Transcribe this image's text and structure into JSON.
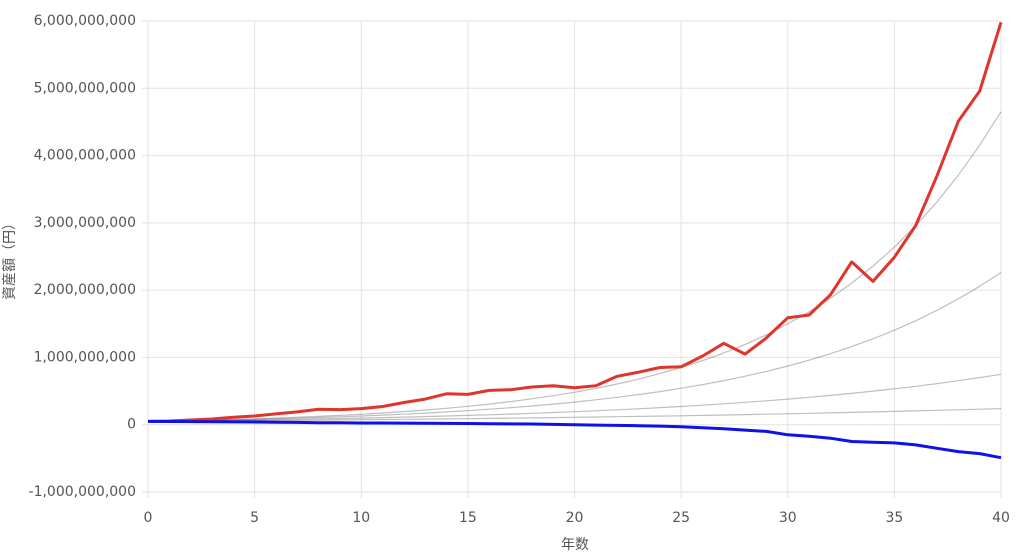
{
  "chart_data": {
    "type": "line",
    "x_label": "年数",
    "y_label": "資産額（円）",
    "x": [
      0,
      1,
      2,
      3,
      4,
      5,
      6,
      7,
      8,
      9,
      10,
      11,
      12,
      13,
      14,
      15,
      16,
      17,
      18,
      19,
      20,
      21,
      22,
      23,
      24,
      25,
      26,
      27,
      28,
      29,
      30,
      31,
      32,
      33,
      34,
      35,
      36,
      37,
      38,
      39,
      40
    ],
    "xlim": [
      0,
      40
    ],
    "xticks": [
      0,
      5,
      10,
      15,
      20,
      25,
      30,
      35,
      40
    ],
    "ylim": [
      -1000000000,
      6000000000
    ],
    "yticks": [
      {
        "value": -1000000000,
        "label": "-1,000,000,000"
      },
      0,
      {
        "value": 1000000000,
        "label": "1,000,000,000"
      },
      {
        "value": 2000000000,
        "label": "2,000,000,000"
      },
      {
        "value": 3000000000,
        "label": "3,000,000,000"
      },
      {
        "value": 4000000000,
        "label": "4,000,000,000"
      },
      {
        "value": 5000000000,
        "label": "5,000,000,000"
      },
      {
        "value": 6000000000,
        "label": "6,000,000,000"
      }
    ],
    "grid": true,
    "series": [
      {
        "color": "rgba(0,0,0,0.25)",
        "values": [
          50000000,
          55000000,
          61000000,
          67000000,
          73000000,
          81000000,
          89000000,
          97000000,
          107000000,
          118000000,
          130000000,
          143000000,
          157000000,
          173000000,
          190000000,
          209000000,
          230000000,
          253000000,
          278000000,
          306000000,
          336000000,
          370000000,
          407000000,
          448000000,
          492000000,
          542000000,
          596000000,
          655000000,
          721000000,
          793000000,
          872000000,
          959000000,
          1055000000,
          1161000000,
          1277000000,
          1405000000,
          1545000000,
          1700000000,
          1870000000,
          2057000000,
          2262000000
        ]
      },
      {
        "color": "rgba(0,0,0,0.25)",
        "values": [
          50000000,
          54000000,
          57000000,
          61000000,
          66000000,
          70000000,
          75000000,
          80000000,
          86000000,
          92000000,
          98000000,
          105000000,
          113000000,
          121000000,
          129000000,
          138000000,
          148000000,
          158000000,
          169000000,
          181000000,
          193000000,
          207000000,
          222000000,
          237000000,
          254000000,
          271000000,
          290000000,
          311000000,
          333000000,
          356000000,
          381000000,
          407000000,
          436000000,
          466000000,
          499000000,
          534000000,
          571000000,
          611000000,
          654000000,
          700000000,
          749000000
        ]
      },
      {
        "color": "rgba(0,0,0,0.25)",
        "values": [
          50000000,
          52000000,
          54000000,
          56000000,
          58000000,
          61000000,
          63000000,
          66000000,
          68000000,
          71000000,
          74000000,
          77000000,
          80000000,
          83000000,
          87000000,
          90000000,
          94000000,
          97000000,
          101000000,
          105000000,
          110000000,
          114000000,
          119000000,
          123000000,
          128000000,
          133000000,
          139000000,
          144000000,
          150000000,
          156000000,
          162000000,
          169000000,
          176000000,
          183000000,
          190000000,
          198000000,
          205000000,
          214000000,
          222000000,
          231000000,
          240000000
        ]
      },
      {
        "color": "rgba(0,0,0,0.25)",
        "values": [
          50000000,
          56000000,
          63000000,
          70000000,
          79000000,
          88000000,
          99000000,
          111000000,
          124000000,
          139000000,
          155000000,
          174000000,
          195000000,
          218000000,
          244000000,
          274000000,
          306000000,
          343000000,
          385000000,
          431000000,
          482000000,
          540000000,
          605000000,
          678000000,
          759000000,
          850000000,
          952000000,
          1066000000,
          1194000000,
          1337000000,
          1498000000,
          1678000000,
          1879000000,
          2104000000,
          2357000000,
          2640000000,
          2956000000,
          3311000000,
          3709000000,
          4154000000,
          4652000000
        ]
      },
      {
        "color": "#e0352b",
        "values": [
          50000000,
          55000000,
          70000000,
          85000000,
          110000000,
          130000000,
          160000000,
          190000000,
          230000000,
          225000000,
          240000000,
          270000000,
          330000000,
          380000000,
          460000000,
          450000000,
          510000000,
          520000000,
          560000000,
          580000000,
          550000000,
          580000000,
          720000000,
          780000000,
          850000000,
          860000000,
          1020000000,
          1210000000,
          1050000000,
          1290000000,
          1590000000,
          1630000000,
          1930000000,
          2420000000,
          2130000000,
          2490000000,
          2960000000,
          3700000000,
          4510000000,
          4960000000,
          5980000000
        ]
      },
      {
        "color": "#1010e8",
        "values": [
          50000000,
          48000000,
          46000000,
          44000000,
          42000000,
          40000000,
          38000000,
          35000000,
          30000000,
          28000000,
          25000000,
          25000000,
          24000000,
          22000000,
          20000000,
          18000000,
          15000000,
          12000000,
          10000000,
          5000000,
          0,
          -5000000,
          -10000000,
          -15000000,
          -20000000,
          -30000000,
          -45000000,
          -60000000,
          -80000000,
          -100000000,
          -150000000,
          -170000000,
          -200000000,
          -250000000,
          -260000000,
          -270000000,
          -300000000,
          -350000000,
          -400000000,
          -430000000,
          -490000000
        ]
      }
    ]
  }
}
